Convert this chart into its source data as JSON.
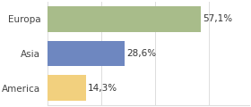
{
  "categories": [
    "America",
    "Asia",
    "Europa"
  ],
  "values": [
    14.3,
    28.6,
    57.1
  ],
  "bar_colors": [
    "#f2d07e",
    "#6e87c0",
    "#a8bc8a"
  ],
  "labels": [
    "14,3%",
    "28,6%",
    "57,1%"
  ],
  "background_color": "#ffffff",
  "xlim": [
    0,
    75
  ],
  "bar_height": 0.75,
  "label_fontsize": 7.5,
  "tick_fontsize": 7.5,
  "grid_color": "#dddddd"
}
